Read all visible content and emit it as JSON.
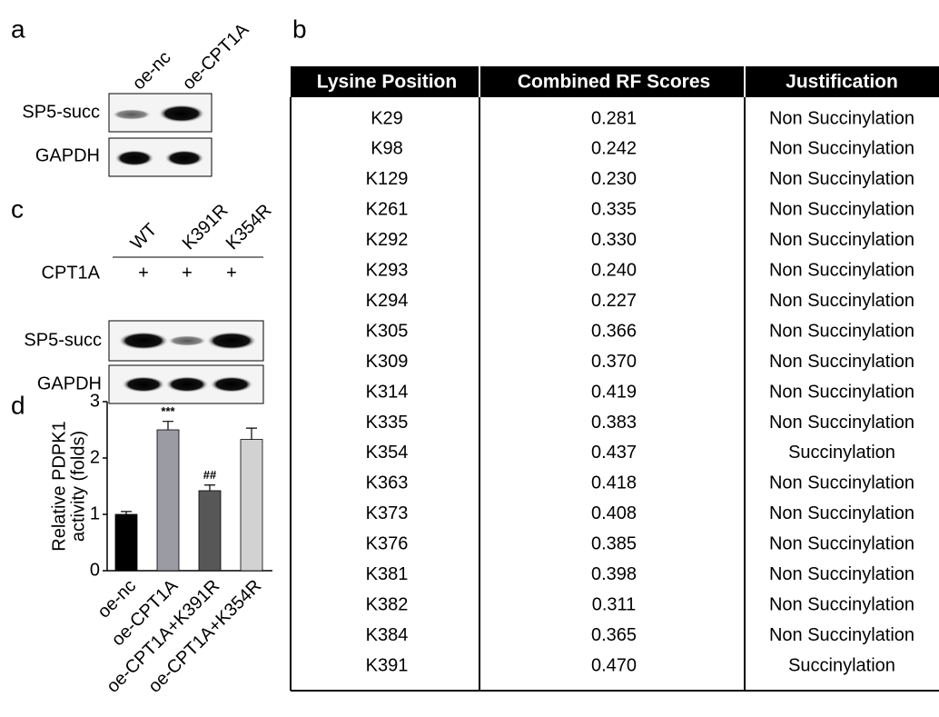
{
  "panel_a": {
    "label": "a",
    "lanes": [
      "oe-nc",
      "oe-CPT1A"
    ],
    "rows": [
      "SP5-succ",
      "GAPDH"
    ]
  },
  "panel_b": {
    "label": "b",
    "table": {
      "header": [
        "Lysine Position",
        "Combined RF Scores",
        "Justification"
      ],
      "rows": [
        {
          "position": "K29",
          "score": "0.281",
          "justification": "Non Succinylation"
        },
        {
          "position": "K98",
          "score": "0.242",
          "justification": "Non Succinylation"
        },
        {
          "position": "K129",
          "score": "0.230",
          "justification": "Non Succinylation"
        },
        {
          "position": "K261",
          "score": "0.335",
          "justification": "Non Succinylation"
        },
        {
          "position": "K292",
          "score": "0.330",
          "justification": "Non Succinylation"
        },
        {
          "position": "K293",
          "score": "0.240",
          "justification": "Non Succinylation"
        },
        {
          "position": "K294",
          "score": "0.227",
          "justification": "Non Succinylation"
        },
        {
          "position": "K305",
          "score": "0.366",
          "justification": "Non Succinylation"
        },
        {
          "position": "K309",
          "score": "0.370",
          "justification": "Non Succinylation"
        },
        {
          "position": "K314",
          "score": "0.419",
          "justification": "Non Succinylation"
        },
        {
          "position": "K335",
          "score": "0.383",
          "justification": "Non Succinylation"
        },
        {
          "position": "K354",
          "score": "0.437",
          "justification": "Succinylation",
          "color": "#e0201b"
        },
        {
          "position": "K363",
          "score": "0.418",
          "justification": "Non Succinylation"
        },
        {
          "position": "K373",
          "score": "0.408",
          "justification": "Non Succinylation"
        },
        {
          "position": "K376",
          "score": "0.385",
          "justification": "Non Succinylation"
        },
        {
          "position": "K381",
          "score": "0.398",
          "justification": "Non Succinylation"
        },
        {
          "position": "K382",
          "score": "0.311",
          "justification": "Non Succinylation"
        },
        {
          "position": "K384",
          "score": "0.365",
          "justification": "Non Succinylation"
        },
        {
          "position": "K391",
          "score": "0.470",
          "justification": "Succinylation",
          "color": "#e0201b"
        }
      ]
    }
  },
  "panel_c": {
    "label": "c",
    "lanes": [
      "WT",
      "K391R",
      "K354R"
    ],
    "treatment": {
      "name": "CPT1A",
      "marks": [
        "+",
        "+",
        "+"
      ]
    },
    "rows": [
      "SP5-succ",
      "GAPDH"
    ]
  },
  "chart_data": {
    "type": "bar",
    "panel_label": "d",
    "y_label": [
      "Relative PDPK1",
      "activity (folds)"
    ],
    "categories": [
      "oe-nc",
      "oe-CPT1A",
      "oe-CPT1A+K391R",
      "oe-CPT1A+K354R"
    ],
    "values": [
      1.0,
      2.5,
      1.42,
      2.33
    ],
    "errors": [
      0.05,
      0.15,
      0.1,
      0.2
    ],
    "colors": [
      "#000000",
      "#9b9ba3",
      "#575757",
      "#d2d2d2"
    ],
    "annotations": [
      null,
      "***",
      "##",
      null
    ],
    "ylim": [
      0,
      3
    ],
    "yticks": [
      0,
      1,
      2,
      3
    ]
  }
}
